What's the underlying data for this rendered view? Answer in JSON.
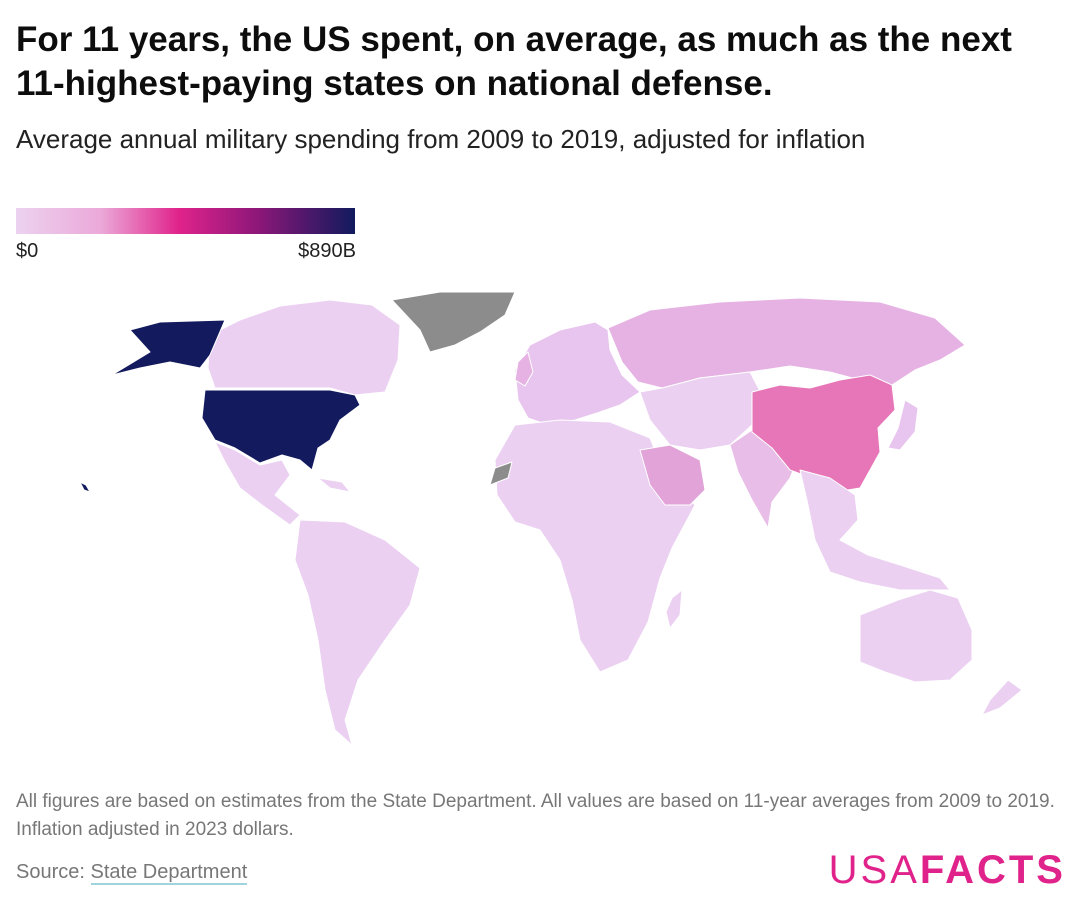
{
  "header": {
    "title": "For 11 years, the US spent, on average, as much as the next 11-highest-paying states on national defense.",
    "subtitle": "Average annual military spending from 2009 to 2019, adjusted for inflation"
  },
  "legend": {
    "min_label": "$0",
    "max_label": "$890B",
    "colors": [
      "#ecd2f0",
      "#eba9d9",
      "#e0238b",
      "#8a1778",
      "#111a5e"
    ],
    "no_data_color": "#8c8c8c"
  },
  "map": {
    "type": "choropleth",
    "metric": "Average annual military spending 2009-2019 (2023 dollars)",
    "regions": [
      {
        "name": "United States",
        "color": "#131a5e"
      },
      {
        "name": "China",
        "color": "#e676b8"
      },
      {
        "name": "Russia",
        "color": "#e6b2e3"
      },
      {
        "name": "Saudi Arabia",
        "color": "#e2a3d9"
      },
      {
        "name": "India",
        "color": "#e8bde7"
      },
      {
        "name": "Canada",
        "color": "#ebd0f2"
      },
      {
        "name": "Greenland",
        "color": "#8c8c8c"
      },
      {
        "name": "Western Sahara",
        "color": "#8c8c8c"
      },
      {
        "name": "Brazil",
        "color": "#e7c6ee"
      },
      {
        "name": "Australia",
        "color": "#ebd0f2"
      },
      {
        "name": "Africa",
        "color": "#ebd0f2"
      },
      {
        "name": "Europe",
        "color": "#e8c5ee"
      }
    ]
  },
  "notes": "All figures are based on estimates from the State Department. All values are based on 11-year averages from 2009 to 2019. Inflation adjusted in 2023 dollars.",
  "source": {
    "label": "Source:",
    "link_text": "State Department"
  },
  "brand": {
    "part1": "USA",
    "part2": "FACTS"
  }
}
